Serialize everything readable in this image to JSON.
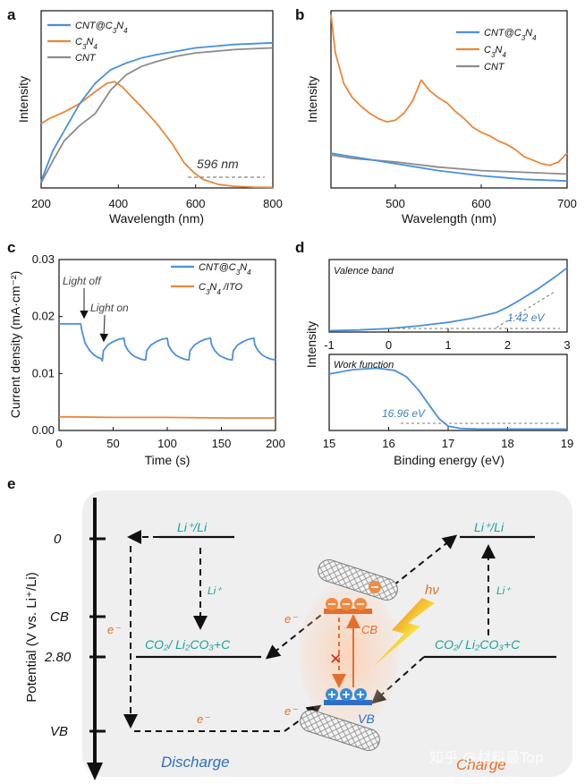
{
  "chart_data": [
    {
      "panel": "a",
      "type": "line",
      "xlabel": "Wavelength (nm)",
      "ylabel": "Intensity",
      "xlim": [
        200,
        800
      ],
      "xticks": [
        "200",
        "400",
        "600",
        "800"
      ],
      "ylim": [
        0,
        1
      ],
      "legend_position": "top-left",
      "series": [
        {
          "name": "CNT@C3N4",
          "color": "#4a90d9",
          "x": [
            200,
            230,
            260,
            300,
            340,
            380,
            420,
            460,
            500,
            550,
            600,
            650,
            700,
            750,
            800
          ],
          "y": [
            0.04,
            0.22,
            0.34,
            0.5,
            0.62,
            0.7,
            0.74,
            0.77,
            0.79,
            0.81,
            0.83,
            0.84,
            0.85,
            0.855,
            0.86
          ]
        },
        {
          "name": "C3N4",
          "color": "#e8873a",
          "x": [
            200,
            220,
            260,
            300,
            340,
            370,
            390,
            410,
            430,
            460,
            500,
            540,
            570,
            596,
            620,
            660,
            700,
            750,
            800
          ],
          "y": [
            0.38,
            0.41,
            0.45,
            0.5,
            0.57,
            0.62,
            0.63,
            0.6,
            0.55,
            0.48,
            0.38,
            0.26,
            0.15,
            0.09,
            0.05,
            0.02,
            0.01,
            0.005,
            0.003
          ]
        },
        {
          "name": "CNT",
          "color": "#8c8c8c",
          "x": [
            200,
            230,
            260,
            300,
            340,
            380,
            420,
            460,
            500,
            550,
            600,
            650,
            700,
            750,
            800
          ],
          "y": [
            0.03,
            0.16,
            0.28,
            0.37,
            0.44,
            0.58,
            0.67,
            0.72,
            0.75,
            0.78,
            0.8,
            0.81,
            0.82,
            0.825,
            0.83
          ]
        }
      ],
      "annotations": [
        {
          "text": "596 nm",
          "x": 596
        }
      ]
    },
    {
      "panel": "b",
      "type": "line",
      "xlabel": "Wavelength (nm)",
      "ylabel": "Intensity",
      "xlim": [
        425,
        700
      ],
      "xticks": [
        "500",
        "600",
        "700"
      ],
      "ylim": [
        0,
        1
      ],
      "legend_position": "top-right",
      "series": [
        {
          "name": "CNT@C3N4",
          "color": "#4a90d9",
          "x": [
            425,
            450,
            500,
            550,
            600,
            650,
            700
          ],
          "y": [
            0.2,
            0.18,
            0.14,
            0.1,
            0.07,
            0.05,
            0.04
          ]
        },
        {
          "name": "C3N4",
          "color": "#e8873a",
          "x": [
            425,
            430,
            440,
            450,
            460,
            470,
            480,
            490,
            500,
            510,
            520,
            530,
            540,
            550,
            560,
            570,
            580,
            590,
            600,
            610,
            620,
            630,
            640,
            650,
            660,
            670,
            680,
            690,
            700
          ],
          "y": [
            1.0,
            0.78,
            0.6,
            0.52,
            0.47,
            0.43,
            0.4,
            0.38,
            0.39,
            0.43,
            0.5,
            0.62,
            0.56,
            0.52,
            0.49,
            0.44,
            0.4,
            0.35,
            0.32,
            0.3,
            0.27,
            0.25,
            0.22,
            0.18,
            0.16,
            0.14,
            0.13,
            0.15,
            0.2
          ]
        },
        {
          "name": "CNT",
          "color": "#8c8c8c",
          "x": [
            425,
            450,
            500,
            550,
            600,
            650,
            700
          ],
          "y": [
            0.19,
            0.17,
            0.15,
            0.12,
            0.1,
            0.09,
            0.08
          ]
        }
      ]
    },
    {
      "panel": "c",
      "type": "line",
      "xlabel": "Time (s)",
      "ylabel": "Current density (mA·cm⁻²)",
      "xlim": [
        0,
        200
      ],
      "xticks": [
        "0",
        "50",
        "100",
        "150",
        "200"
      ],
      "ylim": [
        0,
        0.03
      ],
      "yticks": [
        "0.00",
        "0.01",
        "0.02",
        "0.03"
      ],
      "legend_position": "top-right",
      "series": [
        {
          "name": "CNT@C3N4",
          "color": "#4a90d9",
          "x": [
            0,
            20,
            21,
            24,
            28,
            32,
            36,
            39,
            40,
            41,
            45,
            50,
            55,
            60,
            61,
            64,
            68,
            72,
            76,
            79,
            80,
            81,
            85,
            90,
            95,
            100,
            101,
            104,
            108,
            112,
            116,
            119,
            120,
            121,
            125,
            130,
            135,
            140,
            141,
            144,
            148,
            152,
            156,
            159,
            160,
            161,
            165,
            170,
            175,
            180,
            181,
            184,
            188,
            192,
            196,
            200
          ],
          "y": [
            0.0187,
            0.0187,
            0.0176,
            0.0154,
            0.0141,
            0.0133,
            0.0128,
            0.0126,
            0.0122,
            0.014,
            0.015,
            0.0156,
            0.016,
            0.0162,
            0.015,
            0.014,
            0.0132,
            0.0128,
            0.0125,
            0.0124,
            0.0124,
            0.014,
            0.015,
            0.0156,
            0.016,
            0.0162,
            0.015,
            0.014,
            0.0132,
            0.0128,
            0.0125,
            0.0124,
            0.0124,
            0.014,
            0.015,
            0.0156,
            0.016,
            0.0162,
            0.015,
            0.014,
            0.0132,
            0.0128,
            0.0125,
            0.0124,
            0.0124,
            0.014,
            0.015,
            0.0156,
            0.016,
            0.0162,
            0.015,
            0.014,
            0.0132,
            0.0128,
            0.0125,
            0.0124
          ]
        },
        {
          "name": "C3N4 /ITO",
          "color": "#e8873a",
          "x": [
            0,
            50,
            100,
            150,
            200
          ],
          "y": [
            0.0024,
            0.0023,
            0.0023,
            0.0022,
            0.0022
          ]
        }
      ],
      "annotations": [
        {
          "text": "Light off",
          "x": 22
        },
        {
          "text": "Light on",
          "x": 40
        }
      ]
    },
    {
      "panel": "d-top",
      "type": "line",
      "inset_title": "Valence band",
      "ylabel": "Intensity",
      "xlim": [
        -1,
        3
      ],
      "xticks": [
        "-1",
        "0",
        "1",
        "2",
        "3"
      ],
      "ylim": [
        0,
        1
      ],
      "series": [
        {
          "name": "",
          "color": "#4a90d9",
          "x": [
            -1,
            -0.5,
            0,
            0.5,
            1.0,
            1.4,
            1.8,
            2.0,
            2.2,
            2.5,
            2.8,
            3.0
          ],
          "y": [
            0.02,
            0.03,
            0.05,
            0.09,
            0.14,
            0.2,
            0.28,
            0.36,
            0.46,
            0.62,
            0.8,
            0.93
          ]
        }
      ],
      "annotations": [
        {
          "text": "1.42 eV",
          "x": 1.42
        }
      ]
    },
    {
      "panel": "d-bottom",
      "type": "line",
      "inset_title": "Work function",
      "xlabel": "Binding energy (eV)",
      "xlim": [
        15,
        19
      ],
      "xticks": [
        "15",
        "16",
        "17",
        "18",
        "19"
      ],
      "ylim": [
        0,
        1
      ],
      "series": [
        {
          "name": "",
          "color": "#4a90d9",
          "x": [
            15.0,
            15.4,
            15.8,
            16.1,
            16.3,
            16.5,
            16.7,
            16.85,
            17.0,
            17.2,
            17.5,
            18.0,
            19.0
          ],
          "y": [
            0.78,
            0.84,
            0.86,
            0.83,
            0.74,
            0.56,
            0.33,
            0.16,
            0.06,
            0.03,
            0.02,
            0.02,
            0.02
          ]
        }
      ],
      "annotations": [
        {
          "text": "16.96 eV",
          "x": 16.96
        }
      ]
    }
  ],
  "panel_letters": {
    "a": "a",
    "b": "b",
    "c": "c",
    "d": "d",
    "e": "e"
  },
  "panel_a": {
    "annotation": "596 nm"
  },
  "panel_c": {
    "light_off": "Light off",
    "light_on": "Light on"
  },
  "panel_d": {
    "top_label": "Valence band",
    "bottom_label": "Work function",
    "vb_value": "1.42 eV",
    "wf_value": "16.96 eV"
  },
  "schematic_e": {
    "y_axis_label": "Potential (V vs. Li⁺/Li)",
    "levels": [
      "0",
      "CB",
      "2.80",
      "VB"
    ],
    "li_couple": "Li⁺/Li",
    "li_ion": "Li⁺",
    "co2_reaction": "CO₂/ Li₂CO₃+C",
    "electron": "e⁻",
    "cb_label": "CB",
    "vb_label": "VB",
    "hv": "hν",
    "cross": "✕",
    "discharge": "Discharge",
    "charge": "Charge",
    "watermark": "知乎 @材料最Top",
    "colors": {
      "teal": "#1aa39a",
      "orange": "#e2702c",
      "blue": "#2e6fc4",
      "panel_bg": "#efefef"
    }
  }
}
